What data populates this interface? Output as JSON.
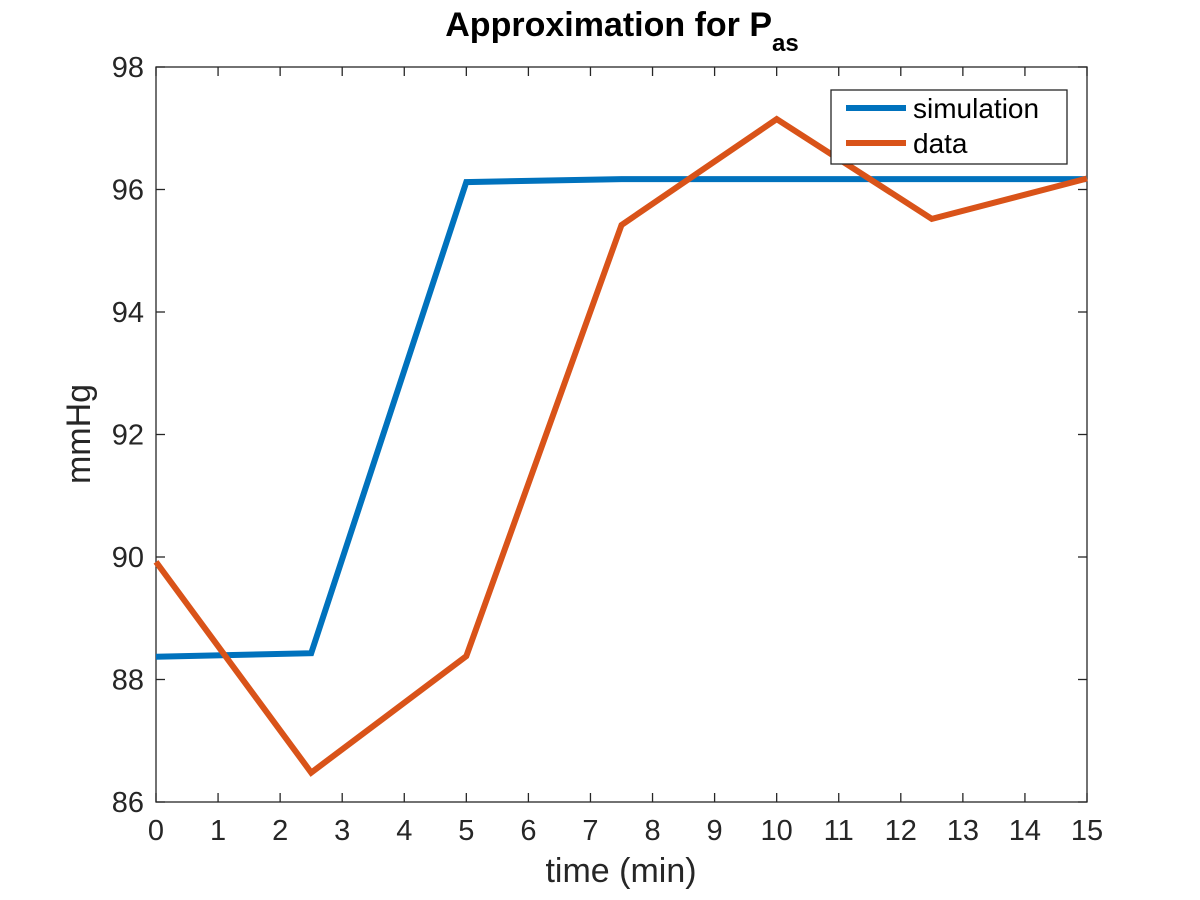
{
  "chart_data": {
    "type": "line",
    "title": "Approximation for P",
    "title_subscript": "as",
    "xlabel": "time (min)",
    "ylabel": "mmHg",
    "xlim": [
      0,
      15
    ],
    "ylim": [
      86,
      98
    ],
    "xticks": [
      "0",
      "1",
      "2",
      "3",
      "4",
      "5",
      "6",
      "7",
      "8",
      "9",
      "10",
      "11",
      "12",
      "13",
      "14",
      "15"
    ],
    "yticks": [
      "86",
      "88",
      "90",
      "92",
      "94",
      "96",
      "98"
    ],
    "grid": false,
    "legend_position": "top-right",
    "series": [
      {
        "name": "simulation",
        "color": "#0072BD",
        "x": [
          0,
          2.5,
          5,
          7.5,
          10,
          12.5,
          15
        ],
        "y": [
          88.37,
          88.43,
          96.12,
          96.17,
          96.17,
          96.17,
          96.17
        ]
      },
      {
        "name": "data",
        "color": "#D95319",
        "x": [
          0,
          2.5,
          5,
          7.5,
          10,
          12.5,
          15
        ],
        "y": [
          89.92,
          86.48,
          88.38,
          95.42,
          97.15,
          95.52,
          96.18
        ]
      }
    ]
  }
}
